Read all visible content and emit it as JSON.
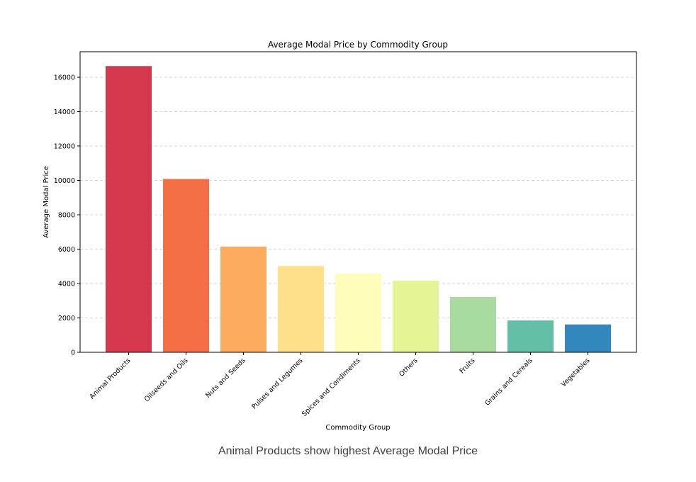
{
  "caption": "Animal Products show highest Average Modal Price",
  "chart_data": {
    "type": "bar",
    "title": "Average Modal Price by Commodity Group",
    "xlabel": "Commodity Group",
    "ylabel": "Average Modal Price",
    "categories": [
      "Animal Products",
      "Oilseeds and Oils",
      "Nuts and Seeds",
      "Pulses and Legumes",
      "Spices and Condiments",
      "Others",
      "Fruits",
      "Grains and Cereals",
      "Vegetables"
    ],
    "values": [
      16650,
      10080,
      6150,
      5020,
      4580,
      4170,
      3220,
      1850,
      1620
    ],
    "colors": [
      "#d5374c",
      "#f36d45",
      "#fdac5f",
      "#fee08b",
      "#fefeba",
      "#e5f595",
      "#a9dba1",
      "#62bea5",
      "#3288bd"
    ],
    "ylim": [
      0,
      17500
    ],
    "yticks": [
      0,
      2000,
      4000,
      6000,
      8000,
      10000,
      12000,
      14000,
      16000
    ],
    "grid": "y-dashed",
    "legend": "none"
  }
}
